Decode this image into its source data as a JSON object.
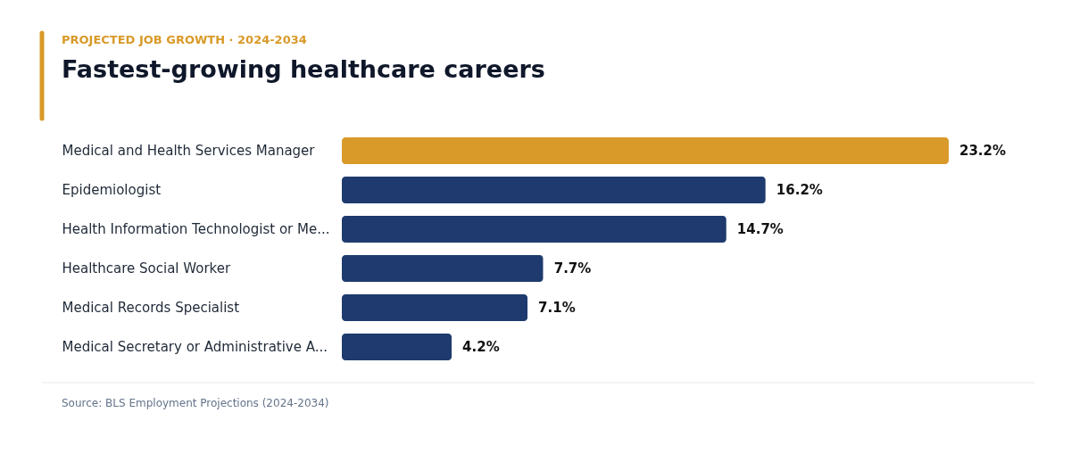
{
  "chart_data": {
    "type": "bar",
    "orientation": "horizontal",
    "subtitle": "PROJECTED JOB GROWTH · 2024-2034",
    "title": "Fastest-growing healthcare careers",
    "categories": [
      "Medical and Health Services Manager",
      "Epidemiologist",
      "Health Information Technologist or Me...",
      "Healthcare Social Worker",
      "Medical Records Specialist",
      "Medical Secretary or Administrative A..."
    ],
    "values": [
      23.2,
      16.2,
      14.7,
      7.7,
      7.1,
      4.2
    ],
    "value_labels": [
      "23.2%",
      "16.2%",
      "14.7%",
      "7.7%",
      "7.1%",
      "4.2%"
    ],
    "colors": [
      "#d99a29",
      "#1e3a6e",
      "#1e3a6e",
      "#1e3a6e",
      "#1e3a6e",
      "#1e3a6e"
    ],
    "annotations": [
      "Source: BLS Employment Projections (2024-2034)"
    ],
    "grid": false
  }
}
